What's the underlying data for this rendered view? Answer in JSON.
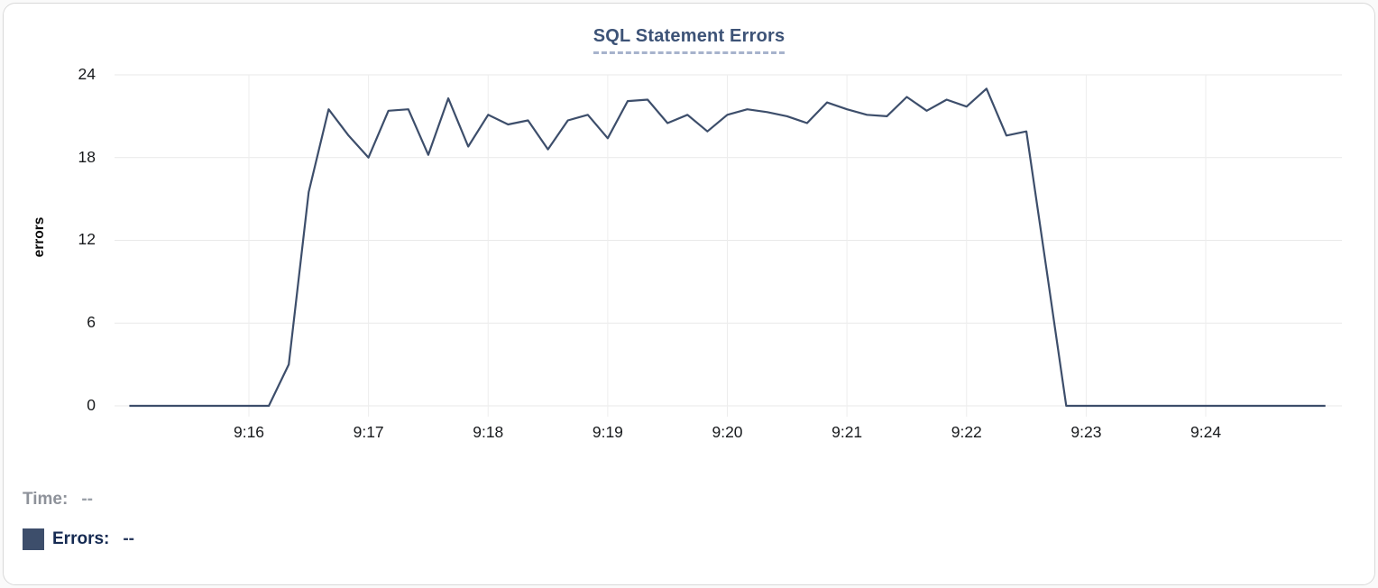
{
  "chart_data": {
    "type": "line",
    "title": "SQL Statement Errors",
    "xlabel": "",
    "ylabel": "errors",
    "ylim": [
      0,
      24
    ],
    "y_ticks": [
      0,
      6,
      12,
      18,
      24
    ],
    "x_ticks": [
      "9:16",
      "9:17",
      "9:18",
      "9:19",
      "9:20",
      "9:21",
      "9:22",
      "9:23",
      "9:24"
    ],
    "x_range": [
      "9:15:00",
      "9:25:00"
    ],
    "interval_seconds": 10,
    "grid": true,
    "legend_position": "bottom-left",
    "series": [
      {
        "name": "Errors",
        "color": "#3d4e6b",
        "points": [
          [
            "9:15:00",
            0
          ],
          [
            "9:15:10",
            0
          ],
          [
            "9:15:20",
            0
          ],
          [
            "9:15:30",
            0
          ],
          [
            "9:15:40",
            0
          ],
          [
            "9:15:50",
            0
          ],
          [
            "9:16:00",
            0
          ],
          [
            "9:16:10",
            0
          ],
          [
            "9:16:20",
            3
          ],
          [
            "9:16:30",
            15.5
          ],
          [
            "9:16:40",
            21.5
          ],
          [
            "9:16:50",
            19.6
          ],
          [
            "9:17:00",
            18
          ],
          [
            "9:17:10",
            21.4
          ],
          [
            "9:17:20",
            21.5
          ],
          [
            "9:17:30",
            18.2
          ],
          [
            "9:17:40",
            22.3
          ],
          [
            "9:17:50",
            18.8
          ],
          [
            "9:18:00",
            21.1
          ],
          [
            "9:18:10",
            20.4
          ],
          [
            "9:18:20",
            20.7
          ],
          [
            "9:18:30",
            18.6
          ],
          [
            "9:18:40",
            20.7
          ],
          [
            "9:18:50",
            21.1
          ],
          [
            "9:19:00",
            19.4
          ],
          [
            "9:19:10",
            22.1
          ],
          [
            "9:19:20",
            22.2
          ],
          [
            "9:19:30",
            20.5
          ],
          [
            "9:19:40",
            21.1
          ],
          [
            "9:19:50",
            19.9
          ],
          [
            "9:20:00",
            21.1
          ],
          [
            "9:20:10",
            21.5
          ],
          [
            "9:20:20",
            21.3
          ],
          [
            "9:20:30",
            21.0
          ],
          [
            "9:20:40",
            20.5
          ],
          [
            "9:20:50",
            22.0
          ],
          [
            "9:21:00",
            21.5
          ],
          [
            "9:21:10",
            21.1
          ],
          [
            "9:21:20",
            21.0
          ],
          [
            "9:21:30",
            22.4
          ],
          [
            "9:21:40",
            21.4
          ],
          [
            "9:21:50",
            22.2
          ],
          [
            "9:22:00",
            21.7
          ],
          [
            "9:22:10",
            23.0
          ],
          [
            "9:22:20",
            19.6
          ],
          [
            "9:22:30",
            19.9
          ],
          [
            "9:22:40",
            10.0
          ],
          [
            "9:22:50",
            0
          ],
          [
            "9:23:00",
            0
          ],
          [
            "9:23:10",
            0
          ],
          [
            "9:23:20",
            0
          ],
          [
            "9:23:30",
            0
          ],
          [
            "9:23:40",
            0
          ],
          [
            "9:23:50",
            0
          ],
          [
            "9:24:00",
            0
          ],
          [
            "9:24:10",
            0
          ],
          [
            "9:24:20",
            0
          ],
          [
            "9:24:30",
            0
          ],
          [
            "9:24:40",
            0
          ],
          [
            "9:24:50",
            0
          ],
          [
            "9:25:00",
            0
          ]
        ]
      }
    ]
  },
  "legend": {
    "time_label": "Time:",
    "time_value": "--",
    "errors_label": "Errors:",
    "errors_value": "--"
  },
  "colors": {
    "line": "#3d4e6b",
    "swatch": "#3d4e6b",
    "title": "#3d5377",
    "grid": "#e9e9e9"
  }
}
